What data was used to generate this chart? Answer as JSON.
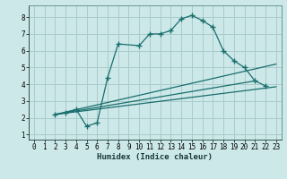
{
  "xlabel": "Humidex (Indice chaleur)",
  "bg_color": "#cce8e8",
  "grid_color": "#aacccc",
  "line_color": "#1a6e6e",
  "xlim": [
    -0.5,
    23.5
  ],
  "ylim": [
    0.7,
    8.7
  ],
  "yticks": [
    1,
    2,
    3,
    4,
    5,
    6,
    7,
    8
  ],
  "xticks": [
    0,
    1,
    2,
    3,
    4,
    5,
    6,
    7,
    8,
    9,
    10,
    11,
    12,
    13,
    14,
    15,
    16,
    17,
    18,
    19,
    20,
    21,
    22,
    23
  ],
  "series1_x": [
    2,
    3,
    4,
    5,
    6,
    7,
    8,
    10,
    11,
    12,
    13,
    14,
    15,
    16,
    17,
    18,
    19,
    20,
    21,
    22
  ],
  "series1_y": [
    2.2,
    2.3,
    2.5,
    1.5,
    1.7,
    4.4,
    6.4,
    6.3,
    7.0,
    7.0,
    7.2,
    7.9,
    8.1,
    7.8,
    7.4,
    6.0,
    5.4,
    5.0,
    4.2,
    3.9
  ],
  "series2_x": [
    2,
    23
  ],
  "series2_y": [
    2.2,
    3.85
  ],
  "series3_x": [
    2,
    23
  ],
  "series3_y": [
    2.2,
    5.2
  ],
  "series4_x": [
    2,
    21
  ],
  "series4_y": [
    2.2,
    4.2
  ]
}
